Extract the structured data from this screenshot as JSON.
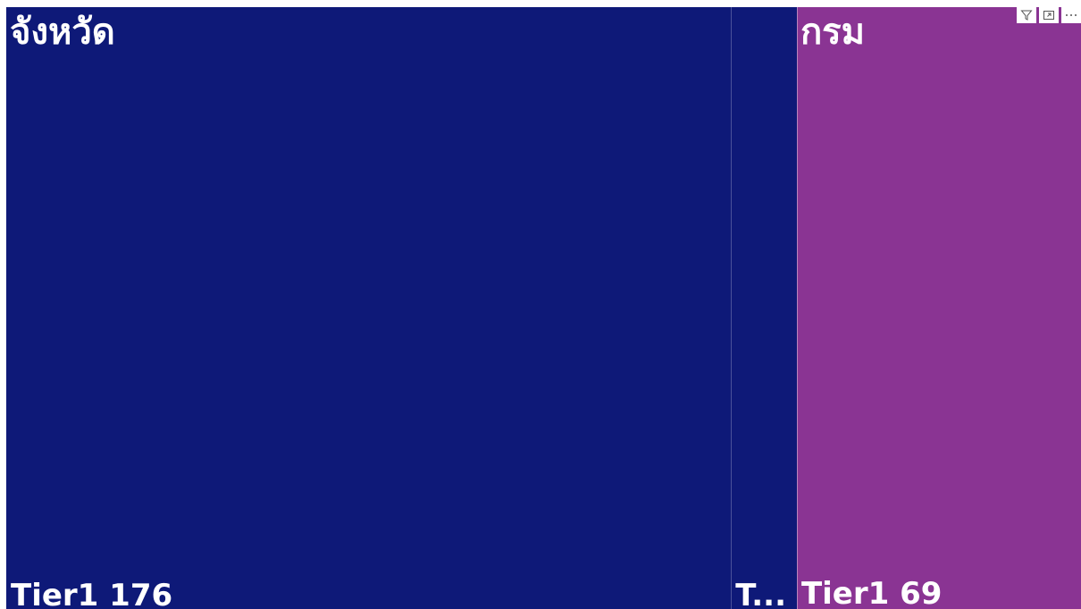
{
  "chart_data": {
    "type": "treemap",
    "groups": [
      {
        "name": "จังหวัด",
        "color": "#0E1978",
        "children": [
          {
            "label": "Tier1 176",
            "name": "Tier1",
            "value": 176
          },
          {
            "label": "T...",
            "name": "Tier1",
            "value": 16
          }
        ]
      },
      {
        "name": "กรม",
        "color": "#8A3493",
        "children": [
          {
            "label": "Tier1 69",
            "name": "Tier1",
            "value": 69
          }
        ]
      }
    ]
  },
  "visual_header": {
    "icons": [
      "filter-icon",
      "focus-mode-icon",
      "more-options-icon"
    ]
  }
}
